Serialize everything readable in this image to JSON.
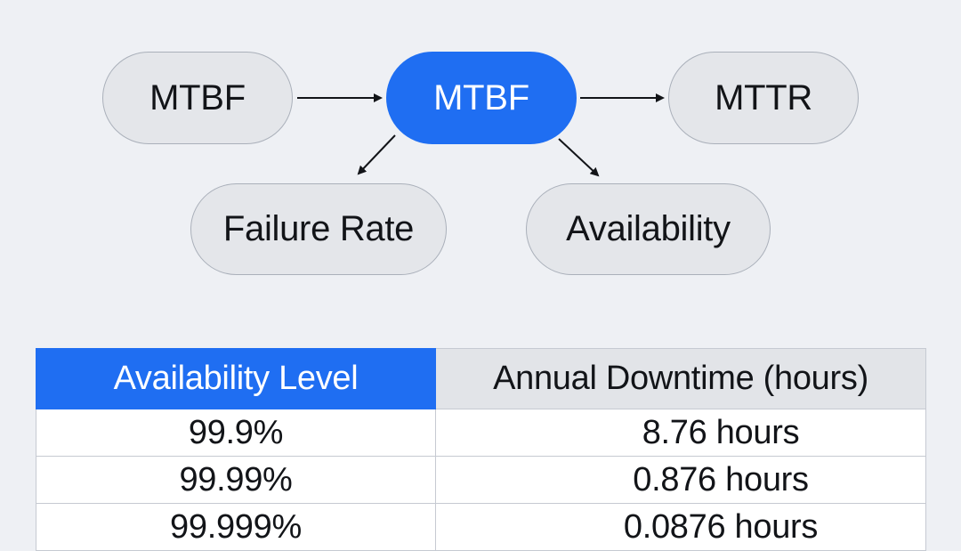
{
  "diagram": {
    "nodes": {
      "mtbf_left": "MTBF",
      "mtbf_center": "MTBF",
      "mttr": "MTTR",
      "failure_rate": "Failure Rate",
      "availability": "Availability"
    },
    "edges": [
      {
        "from": "mtbf_left",
        "to": "mtbf_center"
      },
      {
        "from": "mtbf_center",
        "to": "mttr"
      },
      {
        "from": "mtbf_center",
        "to": "failure_rate"
      },
      {
        "from": "mtbf_center",
        "to": "availability"
      }
    ],
    "colors": {
      "primary_node": "#1f6ef2",
      "node_fill": "#e4e6ea",
      "node_border": "#aab0ba",
      "background": "#eef0f4"
    }
  },
  "table": {
    "headers": {
      "level": "Availability Level",
      "downtime": "Annual Downtime (hours)"
    },
    "rows": [
      {
        "level": "99.9%",
        "downtime": "8.76 hours"
      },
      {
        "level": "99.99%",
        "downtime": "0.876 hours"
      },
      {
        "level": "99.999%",
        "downtime": "0.0876 hours"
      }
    ]
  }
}
